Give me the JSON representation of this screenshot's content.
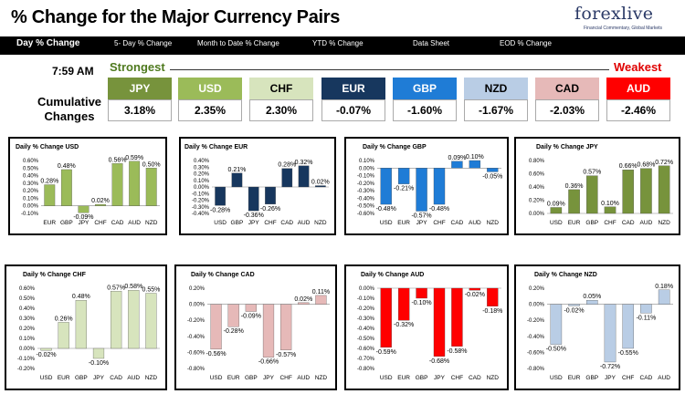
{
  "header": {
    "title": "% Change for the Major Currency Pairs",
    "logo_text": "forexlive",
    "logo_sub": "Financial Commentary, Global Markets"
  },
  "nav": {
    "items": [
      "Day % Change",
      "5- Day % Change",
      "Month to Date % Change",
      "YTD % Change",
      "Data Sheet",
      "EOD % Change"
    ]
  },
  "summary": {
    "time": "7:59 AM",
    "strongest_label": "Strongest",
    "weakest_label": "Weakest",
    "cumulative_label": "Cumulative Changes",
    "currencies": [
      {
        "code": "JPY",
        "value": "3.18%",
        "color": "#77933c"
      },
      {
        "code": "USD",
        "value": "2.35%",
        "color": "#9bbb59"
      },
      {
        "code": "CHF",
        "value": "2.30%",
        "color": "#d7e4bd"
      },
      {
        "code": "EUR",
        "value": "-0.07%",
        "color": "#17375e"
      },
      {
        "code": "GBP",
        "value": "-1.60%",
        "color": "#1f7cd6"
      },
      {
        "code": "NZD",
        "value": "-1.67%",
        "color": "#b9cde5"
      },
      {
        "code": "CAD",
        "value": "-2.03%",
        "color": "#e6b9b8"
      },
      {
        "code": "AUD",
        "value": "-2.46%",
        "color": "#ff0000"
      }
    ]
  },
  "chart_data": [
    {
      "type": "bar",
      "title": "Daily % Change USD",
      "categories": [
        "EUR",
        "GBP",
        "JPY",
        "CHF",
        "CAD",
        "AUD",
        "NZD"
      ],
      "values": [
        0.28,
        0.48,
        -0.09,
        0.02,
        0.56,
        0.59,
        0.5
      ],
      "labels": [
        "0.28%",
        "0.48%",
        "-0.09%",
        "0.02%",
        "0.56%",
        "0.59%",
        "0.50%"
      ],
      "ylim": [
        -0.1,
        0.6
      ],
      "ticks": [
        "0.60%",
        "0.50%",
        "0.40%",
        "0.30%",
        "0.20%",
        "0.10%",
        "0.00%",
        "-0.10%"
      ],
      "color": "#9bbb59"
    },
    {
      "type": "bar",
      "title": "Daily % Change EUR",
      "categories": [
        "USD",
        "GBP",
        "JPY",
        "CHF",
        "CAD",
        "AUD",
        "NZD"
      ],
      "values": [
        -0.28,
        0.21,
        -0.36,
        -0.26,
        0.28,
        0.32,
        0.02
      ],
      "labels": [
        "-0.28%",
        "0.21%",
        "-0.36%",
        "-0.26%",
        "0.28%",
        "0.32%",
        "0.02%"
      ],
      "ylim": [
        -0.4,
        0.4
      ],
      "ticks": [
        "0.40%",
        "0.30%",
        "0.20%",
        "0.10%",
        "0.00%",
        "-0.10%",
        "-0.20%",
        "-0.30%",
        "-0.40%"
      ],
      "color": "#17375e"
    },
    {
      "type": "bar",
      "title": "Daily % Change GBP",
      "categories": [
        "USD",
        "EUR",
        "JPY",
        "CHF",
        "CAD",
        "AUD",
        "NZD"
      ],
      "values": [
        -0.48,
        -0.21,
        -0.57,
        -0.48,
        0.09,
        0.1,
        -0.05
      ],
      "labels": [
        "-0.48%",
        "-0.21%",
        "-0.57%",
        "-0.48%",
        "0.09%",
        "0.10%",
        "-0.05%"
      ],
      "ylim": [
        -0.6,
        0.1
      ],
      "ticks": [
        "0.10%",
        "0.00%",
        "-0.10%",
        "-0.20%",
        "-0.30%",
        "-0.40%",
        "-0.50%",
        "-0.60%"
      ],
      "color": "#1f7cd6"
    },
    {
      "type": "bar",
      "title": "Daily % Change JPY",
      "categories": [
        "USD",
        "EUR",
        "GBP",
        "CHF",
        "CAD",
        "AUD",
        "NZD"
      ],
      "values": [
        0.09,
        0.36,
        0.57,
        0.1,
        0.66,
        0.68,
        0.72
      ],
      "labels": [
        "0.09%",
        "0.36%",
        "0.57%",
        "0.10%",
        "0.66%",
        "0.68%",
        "0.72%"
      ],
      "ylim": [
        0.0,
        0.8
      ],
      "ticks": [
        "0.80%",
        "0.60%",
        "0.40%",
        "0.20%",
        "0.00%"
      ],
      "color": "#77933c"
    },
    {
      "type": "bar",
      "title": "Daily % Change CHF",
      "categories": [
        "USD",
        "EUR",
        "GBP",
        "JPY",
        "CAD",
        "AUD",
        "NZD"
      ],
      "values": [
        -0.02,
        0.26,
        0.48,
        -0.1,
        0.57,
        0.58,
        0.55
      ],
      "labels": [
        "-0.02%",
        "0.26%",
        "0.48%",
        "-0.10%",
        "0.57%",
        "0.58%",
        "0.55%"
      ],
      "ylim": [
        -0.2,
        0.6
      ],
      "ticks": [
        "0.60%",
        "0.50%",
        "0.40%",
        "0.30%",
        "0.20%",
        "0.10%",
        "0.00%",
        "-0.10%",
        "-0.20%"
      ],
      "color": "#d7e4bd"
    },
    {
      "type": "bar",
      "title": "Daily % Change CAD",
      "categories": [
        "USD",
        "EUR",
        "GBP",
        "JPY",
        "CHF",
        "AUD",
        "NZD"
      ],
      "values": [
        -0.56,
        -0.28,
        -0.09,
        -0.66,
        -0.57,
        0.02,
        0.11
      ],
      "labels": [
        "-0.56%",
        "-0.28%",
        "-0.09%",
        "-0.66%",
        "-0.57%",
        "0.02%",
        "0.11%"
      ],
      "ylim": [
        -0.8,
        0.2
      ],
      "ticks": [
        "0.20%",
        "0.00%",
        "-0.20%",
        "-0.40%",
        "-0.60%",
        "-0.80%"
      ],
      "color": "#e6b9b8"
    },
    {
      "type": "bar",
      "title": "Daily % Change AUD",
      "categories": [
        "USD",
        "EUR",
        "GBP",
        "JPY",
        "CHF",
        "CAD",
        "NZD"
      ],
      "values": [
        -0.59,
        -0.32,
        -0.1,
        -0.68,
        -0.58,
        -0.02,
        -0.18
      ],
      "labels": [
        "-0.59%",
        "-0.32%",
        "-0.10%",
        "-0.68%",
        "-0.58%",
        "-0.02%",
        "-0.18%"
      ],
      "ylim": [
        -0.8,
        0.0
      ],
      "ticks": [
        "0.00%",
        "-0.10%",
        "-0.20%",
        "-0.30%",
        "-0.40%",
        "-0.50%",
        "-0.60%",
        "-0.70%",
        "-0.80%"
      ],
      "color": "#ff0000"
    },
    {
      "type": "bar",
      "title": "Daily % Change NZD",
      "categories": [
        "USD",
        "EUR",
        "GBP",
        "JPY",
        "CHF",
        "CAD",
        "AUD"
      ],
      "values": [
        -0.5,
        -0.02,
        0.05,
        -0.72,
        -0.55,
        -0.11,
        0.18
      ],
      "labels": [
        "-0.50%",
        "-0.02%",
        "0.05%",
        "-0.72%",
        "-0.55%",
        "-0.11%",
        "0.18%"
      ],
      "ylim": [
        -0.8,
        0.2
      ],
      "ticks": [
        "0.20%",
        "0.00%",
        "-0.20%",
        "-0.40%",
        "-0.60%",
        "-0.80%"
      ],
      "color": "#b9cde5"
    }
  ]
}
